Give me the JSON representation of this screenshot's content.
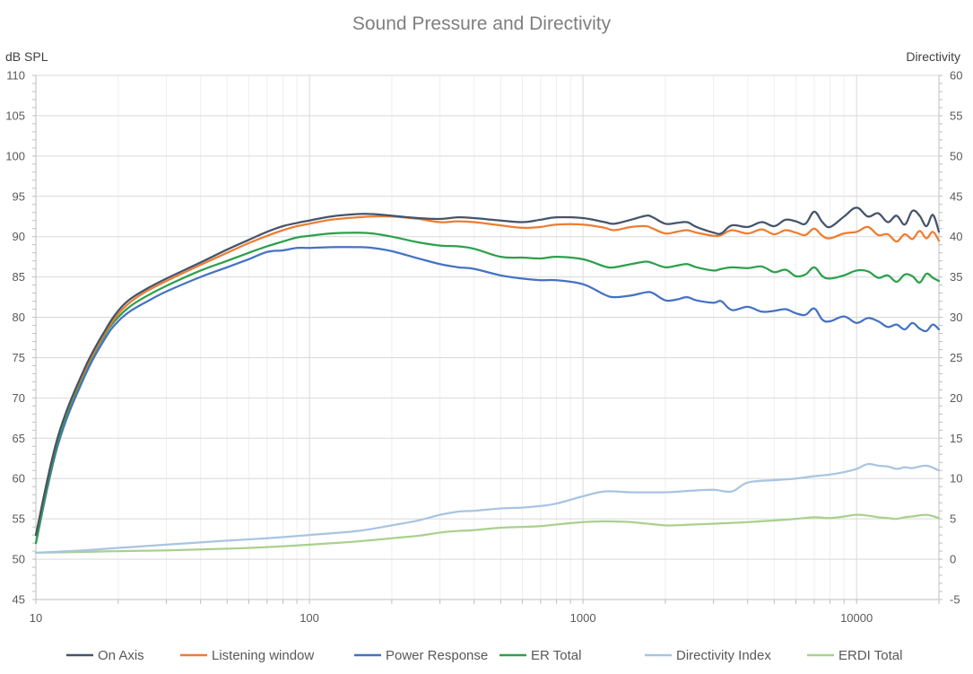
{
  "chart_data": {
    "type": "line",
    "title": "Sound Pressure and Directivity",
    "ylabel_left": "dB SPL",
    "ylabel_right": "Directivity",
    "xscale": "log",
    "xlim": [
      10,
      20000
    ],
    "ylim_left": [
      45,
      110
    ],
    "ylim_right": [
      -5,
      60
    ],
    "grid": true,
    "legend_position": "bottom",
    "x_ticks": [
      "10",
      "100",
      "1000",
      "10000"
    ],
    "y_left_ticks": [
      "45",
      "50",
      "55",
      "60",
      "65",
      "70",
      "75",
      "80",
      "85",
      "90",
      "95",
      "100",
      "105",
      "110"
    ],
    "y_right_ticks": [
      "-5",
      "0",
      "5",
      "10",
      "15",
      "20",
      "25",
      "30",
      "35",
      "40",
      "45",
      "50",
      "55",
      "60"
    ],
    "series": [
      {
        "name": "On Axis",
        "axis": "left",
        "color": "#44546a",
        "x": [
          10,
          12,
          15,
          18,
          20,
          22,
          25,
          30,
          40,
          50,
          60,
          70,
          80,
          90,
          100,
          120,
          150,
          170,
          200,
          250,
          300,
          350,
          400,
          500,
          600,
          700,
          800,
          1000,
          1200,
          1300,
          1500,
          1700,
          1800,
          2000,
          2200,
          2400,
          2600,
          3000,
          3200,
          3500,
          4000,
          4500,
          5000,
          5500,
          6000,
          6500,
          7000,
          7500,
          8000,
          9000,
          10000,
          11000,
          12000,
          13000,
          14000,
          15000,
          16000,
          17000,
          18000,
          19000,
          20000
        ],
        "values": [
          53,
          65,
          73.5,
          78.5,
          80.8,
          82.2,
          83.4,
          84.8,
          86.8,
          88.4,
          89.6,
          90.6,
          91.3,
          91.7,
          92,
          92.5,
          92.8,
          92.8,
          92.6,
          92.3,
          92.2,
          92.4,
          92.3,
          92,
          91.8,
          92.1,
          92.4,
          92.3,
          91.8,
          91.6,
          92.1,
          92.6,
          92.4,
          91.6,
          91.7,
          91.8,
          91.2,
          90.5,
          90.4,
          91.4,
          91.2,
          91.8,
          91.3,
          92.1,
          91.9,
          91.6,
          93.1,
          91.8,
          91.2,
          92.5,
          93.6,
          92.5,
          92.9,
          91.8,
          92.6,
          91.5,
          93.2,
          92.6,
          91.3,
          92.7,
          90.6
        ]
      },
      {
        "name": "Listening window",
        "axis": "left",
        "color": "#ed7d31",
        "x": [
          10,
          12,
          15,
          18,
          20,
          22,
          25,
          30,
          40,
          50,
          60,
          70,
          80,
          90,
          100,
          120,
          150,
          170,
          200,
          250,
          300,
          350,
          400,
          500,
          600,
          700,
          800,
          1000,
          1200,
          1300,
          1500,
          1700,
          1800,
          2000,
          2200,
          2400,
          2600,
          3000,
          3200,
          3500,
          4000,
          4500,
          5000,
          5500,
          6000,
          6500,
          7000,
          7500,
          8000,
          9000,
          10000,
          11000,
          12000,
          13000,
          14000,
          15000,
          16000,
          17000,
          18000,
          19000,
          20000
        ],
        "values": [
          53,
          65,
          73.2,
          78.2,
          80.4,
          81.8,
          83.1,
          84.5,
          86.5,
          88,
          89.2,
          90.1,
          90.8,
          91.3,
          91.6,
          92.1,
          92.4,
          92.5,
          92.5,
          92.2,
          91.8,
          91.9,
          91.8,
          91.4,
          91.1,
          91.2,
          91.5,
          91.5,
          91.1,
          90.8,
          91.2,
          91.3,
          91,
          90.4,
          90.6,
          90.8,
          90.5,
          90.1,
          90.2,
          90.8,
          90.4,
          90.9,
          90.3,
          90.8,
          90.5,
          90.2,
          91,
          90.1,
          89.8,
          90.4,
          90.6,
          91.2,
          90.2,
          90.3,
          89.4,
          90.3,
          89.7,
          90.7,
          89.8,
          90.6,
          89.5
        ]
      },
      {
        "name": "Power Response",
        "axis": "left",
        "color": "#4472c4",
        "x": [
          10,
          12,
          15,
          18,
          20,
          22,
          25,
          30,
          40,
          50,
          60,
          70,
          80,
          90,
          100,
          120,
          150,
          170,
          200,
          250,
          300,
          350,
          400,
          500,
          600,
          700,
          800,
          1000,
          1200,
          1300,
          1500,
          1700,
          1800,
          2000,
          2200,
          2400,
          2600,
          3000,
          3200,
          3500,
          4000,
          4500,
          5000,
          5500,
          6000,
          6500,
          7000,
          7500,
          8000,
          9000,
          10000,
          11000,
          12000,
          13000,
          14000,
          15000,
          16000,
          17000,
          18000,
          19000,
          20000
        ],
        "values": [
          52,
          64,
          72.5,
          77.5,
          79.5,
          80.7,
          81.8,
          83.2,
          85,
          86.2,
          87.2,
          88.1,
          88.3,
          88.6,
          88.6,
          88.7,
          88.7,
          88.6,
          88.2,
          87.3,
          86.6,
          86.2,
          86,
          85.2,
          84.8,
          84.6,
          84.6,
          84.1,
          82.8,
          82.5,
          82.7,
          83.1,
          83,
          82.1,
          82.2,
          82.5,
          82.1,
          81.8,
          82,
          80.9,
          81.3,
          80.7,
          80.8,
          81,
          80.5,
          80.3,
          81.1,
          79.7,
          79.5,
          80.1,
          79.3,
          79.9,
          79.5,
          78.8,
          79.1,
          78.5,
          79.3,
          78.6,
          78.3,
          79.1,
          78.5
        ]
      },
      {
        "name": "ER Total",
        "axis": "left",
        "color": "#2ca04c",
        "x": [
          10,
          12,
          15,
          18,
          20,
          22,
          25,
          30,
          40,
          50,
          60,
          70,
          80,
          90,
          100,
          120,
          150,
          170,
          200,
          250,
          300,
          350,
          400,
          500,
          600,
          700,
          800,
          1000,
          1200,
          1300,
          1500,
          1700,
          1800,
          2000,
          2200,
          2400,
          2600,
          3000,
          3200,
          3500,
          4000,
          4500,
          5000,
          5500,
          6000,
          6500,
          7000,
          7500,
          8000,
          9000,
          10000,
          11000,
          12000,
          13000,
          14000,
          15000,
          16000,
          17000,
          18000,
          19000,
          20000
        ],
        "values": [
          52,
          64.5,
          73,
          78,
          80,
          81.3,
          82.5,
          83.9,
          85.8,
          87,
          88,
          88.8,
          89.4,
          89.9,
          90.1,
          90.4,
          90.5,
          90.4,
          90,
          89.3,
          88.9,
          88.8,
          88.5,
          87.5,
          87.4,
          87.3,
          87.5,
          87.2,
          86.3,
          86.2,
          86.6,
          86.9,
          86.7,
          86.2,
          86.4,
          86.6,
          86.2,
          85.8,
          86,
          86.2,
          86.1,
          86.3,
          85.6,
          85.9,
          85.1,
          85.3,
          86.2,
          85.1,
          84.8,
          85.2,
          85.8,
          85.7,
          84.9,
          85.2,
          84.4,
          85.3,
          85.1,
          84.3,
          85.4,
          84.9,
          84.5
        ]
      },
      {
        "name": "Directivity Index",
        "axis": "right",
        "color": "#a9c4e2",
        "x": [
          10,
          15,
          20,
          30,
          50,
          70,
          100,
          150,
          200,
          250,
          300,
          350,
          400,
          500,
          600,
          700,
          800,
          1000,
          1200,
          1500,
          2000,
          2500,
          3000,
          3500,
          4000,
          5000,
          6000,
          7000,
          8000,
          9000,
          10000,
          11000,
          12000,
          13000,
          14000,
          15000,
          16000,
          18000,
          20000
        ],
        "values": [
          0.8,
          1.1,
          1.4,
          1.8,
          2.3,
          2.6,
          3,
          3.5,
          4.2,
          4.8,
          5.5,
          5.9,
          6,
          6.3,
          6.4,
          6.6,
          6.9,
          7.8,
          8.4,
          8.3,
          8.3,
          8.5,
          8.6,
          8.4,
          9.5,
          9.8,
          10,
          10.3,
          10.5,
          10.8,
          11.2,
          11.8,
          11.6,
          11.5,
          11.2,
          11.4,
          11.3,
          11.6,
          11
        ]
      },
      {
        "name": "ERDI Total",
        "axis": "right",
        "color": "#a9d18e",
        "x": [
          10,
          15,
          20,
          30,
          50,
          70,
          100,
          150,
          200,
          250,
          300,
          350,
          400,
          500,
          600,
          700,
          800,
          1000,
          1200,
          1500,
          2000,
          2500,
          3000,
          3500,
          4000,
          5000,
          6000,
          7000,
          8000,
          9000,
          10000,
          11000,
          12000,
          13000,
          14000,
          15000,
          16000,
          18000,
          20000
        ],
        "values": [
          0.8,
          0.9,
          1,
          1.1,
          1.3,
          1.5,
          1.8,
          2.2,
          2.6,
          2.9,
          3.3,
          3.5,
          3.6,
          3.9,
          4,
          4.1,
          4.3,
          4.6,
          4.7,
          4.6,
          4.2,
          4.3,
          4.4,
          4.5,
          4.6,
          4.8,
          5,
          5.2,
          5.1,
          5.3,
          5.5,
          5.4,
          5.2,
          5.1,
          5,
          5.2,
          5.3,
          5.5,
          5.1
        ]
      }
    ]
  }
}
